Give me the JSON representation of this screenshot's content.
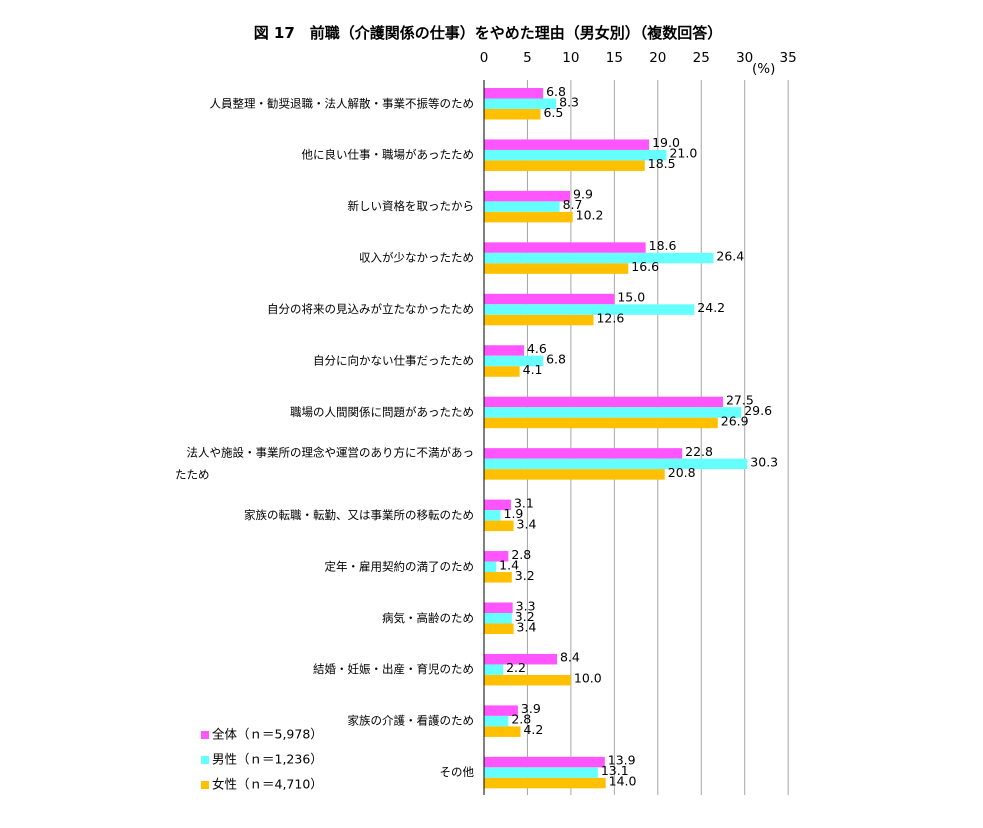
{
  "chart_data": {
    "type": "bar",
    "orientation": "horizontal",
    "title": "図 17　前職（介護関係の仕事）をやめた理由（男女別）（複数回答）",
    "unit_label": "(%)",
    "xlim": [
      0,
      35
    ],
    "ticks": [
      "0",
      "5",
      "10",
      "15",
      "20",
      "25",
      "30",
      "35"
    ],
    "grid": true,
    "legend_position": "bottom-left",
    "categories": [
      [
        "人員整理・勧奨退職・法人解散・事業不振等のため"
      ],
      [
        "他に良い仕事・職場があったため"
      ],
      [
        "新しい資格を取ったから"
      ],
      [
        "収入が少なかったため"
      ],
      [
        "自分の将来の見込みが立たなかったため"
      ],
      [
        "自分に向かない仕事だったため"
      ],
      [
        "職場の人間関係に問題があったため"
      ],
      [
        "法人や施設・事業所の理念や運営のあり方に不満があっ",
        "たため"
      ],
      [
        "家族の転職・転勤、又は事業所の移転のため"
      ],
      [
        "定年・雇用契約の満了のため"
      ],
      [
        "病気・高齢のため"
      ],
      [
        "結婚・妊娠・出産・育児のため"
      ],
      [
        "家族の介護・看護のため"
      ],
      [
        "その他"
      ]
    ],
    "series": [
      {
        "name": "全体（ｎ＝5,978）",
        "color": "#ff55ff",
        "values": [
          6.8,
          19.0,
          9.9,
          18.6,
          15.0,
          4.6,
          27.5,
          22.8,
          3.1,
          2.8,
          3.3,
          8.4,
          3.9,
          13.9
        ],
        "labels": [
          "6.8",
          "19.0",
          "9.9",
          "18.6",
          "15.0",
          "4.6",
          "27.5",
          "22.8",
          "3.1",
          "2.8",
          "3.3",
          "8.4",
          "3.9",
          "13.9"
        ]
      },
      {
        "name": "男性（ｎ＝1,236）",
        "color": "#66ffff",
        "values": [
          8.3,
          21.0,
          8.7,
          26.4,
          24.2,
          6.8,
          29.6,
          30.3,
          1.9,
          1.4,
          3.2,
          2.2,
          2.8,
          13.1
        ],
        "labels": [
          "8.3",
          "21.0",
          "8.7",
          "26.4",
          "24.2",
          "6.8",
          "29.6",
          "30.3",
          "1.9",
          "1.4",
          "3.2",
          "2.2",
          "2.8",
          "13.1"
        ]
      },
      {
        "name": "女性（ｎ＝4,710）",
        "color": "#ffc000",
        "values": [
          6.5,
          18.5,
          10.2,
          16.6,
          12.6,
          4.1,
          26.9,
          20.8,
          3.4,
          3.2,
          3.4,
          10.0,
          4.2,
          14.0
        ],
        "labels": [
          "6.5",
          "18.5",
          "10.2",
          "16.6",
          "12.6",
          "4.1",
          "26.9",
          "20.8",
          "3.4",
          "3.2",
          "3.4",
          "10.0",
          "4.2",
          "14.0"
        ]
      }
    ]
  }
}
